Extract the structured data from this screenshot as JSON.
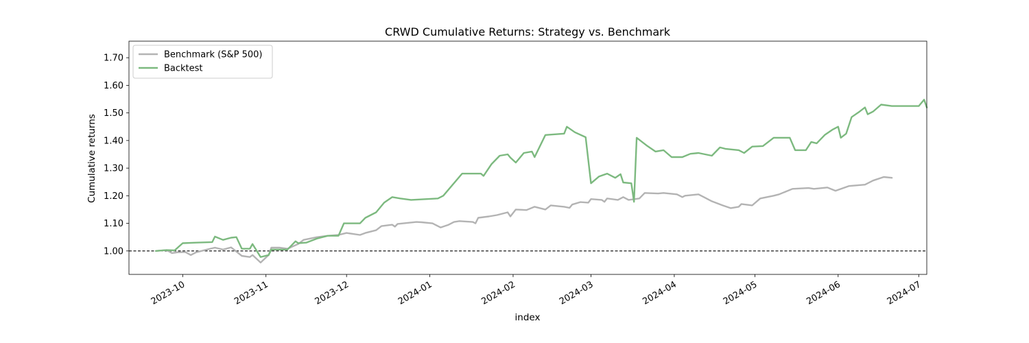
{
  "chart_data": {
    "type": "line",
    "title": "CRWD Cumulative Returns: Strategy vs. Benchmark",
    "xlabel": "index",
    "ylabel": "Cumulative returns",
    "x_range": [
      "2023-09-11",
      "2024-07-04"
    ],
    "ylim": [
      0.915,
      1.76
    ],
    "y_ticks": [
      1.0,
      1.1,
      1.2,
      1.3,
      1.4,
      1.5,
      1.6,
      1.7
    ],
    "y_tick_labels": [
      "1.00",
      "1.10",
      "1.20",
      "1.30",
      "1.40",
      "1.50",
      "1.60",
      "1.70"
    ],
    "x_ticks": [
      "2023-10-01",
      "2023-11-01",
      "2023-12-01",
      "2024-01-01",
      "2024-02-01",
      "2024-03-01",
      "2024-04-01",
      "2024-05-01",
      "2024-06-01",
      "2024-07-01"
    ],
    "x_tick_labels": [
      "2023-10",
      "2023-11",
      "2023-12",
      "2024-01",
      "2024-02",
      "2024-03",
      "2024-04",
      "2024-05",
      "2024-06",
      "2024-07"
    ],
    "reference_line": {
      "y": 1.0,
      "style": "dashed",
      "color": "#000000"
    },
    "grid": false,
    "legend_position": "top-left",
    "series": [
      {
        "name": "Benchmark (S&P 500)",
        "color": "#b3b3b3",
        "points": [
          [
            "2023-09-21",
            1.0
          ],
          [
            "2023-09-25",
            1.003
          ],
          [
            "2023-09-27",
            0.992
          ],
          [
            "2023-09-29",
            0.995
          ],
          [
            "2023-10-02",
            0.996
          ],
          [
            "2023-10-04",
            0.985
          ],
          [
            "2023-10-06",
            0.995
          ],
          [
            "2023-10-10",
            1.005
          ],
          [
            "2023-10-13",
            1.012
          ],
          [
            "2023-10-16",
            1.005
          ],
          [
            "2023-10-19",
            1.013
          ],
          [
            "2023-10-23",
            0.982
          ],
          [
            "2023-10-26",
            0.978
          ],
          [
            "2023-10-27",
            0.985
          ],
          [
            "2023-10-30",
            0.958
          ],
          [
            "2023-11-02",
            0.985
          ],
          [
            "2023-11-03",
            1.012
          ],
          [
            "2023-11-06",
            1.012
          ],
          [
            "2023-11-09",
            1.008
          ],
          [
            "2023-11-13",
            1.025
          ],
          [
            "2023-11-15",
            1.04
          ],
          [
            "2023-11-20",
            1.05
          ],
          [
            "2023-11-24",
            1.055
          ],
          [
            "2023-11-28",
            1.058
          ],
          [
            "2023-12-01",
            1.065
          ],
          [
            "2023-12-06",
            1.058
          ],
          [
            "2023-12-08",
            1.065
          ],
          [
            "2023-12-12",
            1.075
          ],
          [
            "2023-12-14",
            1.09
          ],
          [
            "2023-12-18",
            1.095
          ],
          [
            "2023-12-19",
            1.088
          ],
          [
            "2023-12-20",
            1.098
          ],
          [
            "2023-12-27",
            1.105
          ],
          [
            "2023-12-29",
            1.104
          ],
          [
            "2024-01-02",
            1.1
          ],
          [
            "2024-01-04",
            1.09
          ],
          [
            "2024-01-05",
            1.085
          ],
          [
            "2024-01-08",
            1.095
          ],
          [
            "2024-01-10",
            1.105
          ],
          [
            "2024-01-12",
            1.108
          ],
          [
            "2024-01-17",
            1.105
          ],
          [
            "2024-01-18",
            1.1
          ],
          [
            "2024-01-19",
            1.12
          ],
          [
            "2024-01-23",
            1.125
          ],
          [
            "2024-01-26",
            1.13
          ],
          [
            "2024-01-30",
            1.14
          ],
          [
            "2024-01-31",
            1.125
          ],
          [
            "2024-02-02",
            1.15
          ],
          [
            "2024-02-06",
            1.148
          ],
          [
            "2024-02-09",
            1.16
          ],
          [
            "2024-02-13",
            1.15
          ],
          [
            "2024-02-15",
            1.165
          ],
          [
            "2024-02-20",
            1.16
          ],
          [
            "2024-02-22",
            1.156
          ],
          [
            "2024-02-23",
            1.168
          ],
          [
            "2024-02-26",
            1.177
          ],
          [
            "2024-02-29",
            1.175
          ],
          [
            "2024-03-01",
            1.188
          ],
          [
            "2024-03-05",
            1.185
          ],
          [
            "2024-03-06",
            1.178
          ],
          [
            "2024-03-07",
            1.19
          ],
          [
            "2024-03-11",
            1.185
          ],
          [
            "2024-03-13",
            1.195
          ],
          [
            "2024-03-15",
            1.185
          ],
          [
            "2024-03-19",
            1.19
          ],
          [
            "2024-03-21",
            1.21
          ],
          [
            "2024-03-26",
            1.208
          ],
          [
            "2024-03-28",
            1.21
          ],
          [
            "2024-04-02",
            1.205
          ],
          [
            "2024-04-04",
            1.195
          ],
          [
            "2024-04-05",
            1.2
          ],
          [
            "2024-04-10",
            1.205
          ],
          [
            "2024-04-12",
            1.195
          ],
          [
            "2024-04-15",
            1.18
          ],
          [
            "2024-04-19",
            1.165
          ],
          [
            "2024-04-22",
            1.155
          ],
          [
            "2024-04-25",
            1.16
          ],
          [
            "2024-04-26",
            1.17
          ],
          [
            "2024-04-30",
            1.165
          ],
          [
            "2024-05-03",
            1.19
          ],
          [
            "2024-05-08",
            1.2
          ],
          [
            "2024-05-10",
            1.205
          ],
          [
            "2024-05-15",
            1.225
          ],
          [
            "2024-05-21",
            1.228
          ],
          [
            "2024-05-23",
            1.225
          ],
          [
            "2024-05-28",
            1.23
          ],
          [
            "2024-05-31",
            1.218
          ],
          [
            "2024-06-05",
            1.235
          ],
          [
            "2024-06-11",
            1.24
          ],
          [
            "2024-06-14",
            1.255
          ],
          [
            "2024-06-18",
            1.268
          ],
          [
            "2024-06-21",
            1.265
          ]
        ]
      },
      {
        "name": "Backtest",
        "color": "#7cb97f",
        "points": [
          [
            "2023-09-21",
            1.0
          ],
          [
            "2023-09-25",
            1.003
          ],
          [
            "2023-09-28",
            1.002
          ],
          [
            "2023-10-01",
            1.028
          ],
          [
            "2023-10-06",
            1.03
          ],
          [
            "2023-10-12",
            1.032
          ],
          [
            "2023-10-13",
            1.052
          ],
          [
            "2023-10-16",
            1.04
          ],
          [
            "2023-10-19",
            1.048
          ],
          [
            "2023-10-21",
            1.05
          ],
          [
            "2023-10-23",
            1.008
          ],
          [
            "2023-10-26",
            1.008
          ],
          [
            "2023-10-27",
            1.025
          ],
          [
            "2023-10-30",
            0.978
          ],
          [
            "2023-11-02",
            0.985
          ],
          [
            "2023-11-03",
            1.005
          ],
          [
            "2023-11-06",
            1.005
          ],
          [
            "2023-11-09",
            1.005
          ],
          [
            "2023-11-12",
            1.035
          ],
          [
            "2023-11-13",
            1.028
          ],
          [
            "2023-11-16",
            1.03
          ],
          [
            "2023-11-20",
            1.045
          ],
          [
            "2023-11-24",
            1.055
          ],
          [
            "2023-11-28",
            1.055
          ],
          [
            "2023-11-30",
            1.1
          ],
          [
            "2023-12-06",
            1.1
          ],
          [
            "2023-12-08",
            1.12
          ],
          [
            "2023-12-12",
            1.14
          ],
          [
            "2023-12-15",
            1.175
          ],
          [
            "2023-12-18",
            1.195
          ],
          [
            "2023-12-21",
            1.19
          ],
          [
            "2023-12-25",
            1.185
          ],
          [
            "2024-01-04",
            1.19
          ],
          [
            "2024-01-06",
            1.2
          ],
          [
            "2024-01-13",
            1.28
          ],
          [
            "2024-01-20",
            1.28
          ],
          [
            "2024-01-21",
            1.272
          ],
          [
            "2024-01-24",
            1.315
          ],
          [
            "2024-01-27",
            1.345
          ],
          [
            "2024-01-30",
            1.35
          ],
          [
            "2024-01-31",
            1.338
          ],
          [
            "2024-02-02",
            1.32
          ],
          [
            "2024-02-05",
            1.355
          ],
          [
            "2024-02-08",
            1.36
          ],
          [
            "2024-02-09",
            1.34
          ],
          [
            "2024-02-13",
            1.42
          ],
          [
            "2024-02-20",
            1.425
          ],
          [
            "2024-02-21",
            1.45
          ],
          [
            "2024-02-24",
            1.43
          ],
          [
            "2024-02-28",
            1.412
          ],
          [
            "2024-03-01",
            1.245
          ],
          [
            "2024-03-04",
            1.27
          ],
          [
            "2024-03-07",
            1.28
          ],
          [
            "2024-03-10",
            1.265
          ],
          [
            "2024-03-12",
            1.278
          ],
          [
            "2024-03-13",
            1.248
          ],
          [
            "2024-03-16",
            1.245
          ],
          [
            "2024-03-17",
            1.178
          ],
          [
            "2024-03-18",
            1.41
          ],
          [
            "2024-03-22",
            1.38
          ],
          [
            "2024-03-25",
            1.36
          ],
          [
            "2024-03-28",
            1.365
          ],
          [
            "2024-03-31",
            1.34
          ],
          [
            "2024-04-04",
            1.34
          ],
          [
            "2024-04-07",
            1.352
          ],
          [
            "2024-04-10",
            1.355
          ],
          [
            "2024-04-15",
            1.345
          ],
          [
            "2024-04-18",
            1.375
          ],
          [
            "2024-04-20",
            1.37
          ],
          [
            "2024-04-25",
            1.365
          ],
          [
            "2024-04-27",
            1.355
          ],
          [
            "2024-04-30",
            1.378
          ],
          [
            "2024-05-04",
            1.38
          ],
          [
            "2024-05-08",
            1.41
          ],
          [
            "2024-05-14",
            1.41
          ],
          [
            "2024-05-16",
            1.365
          ],
          [
            "2024-05-20",
            1.365
          ],
          [
            "2024-05-22",
            1.395
          ],
          [
            "2024-05-24",
            1.39
          ],
          [
            "2024-05-27",
            1.42
          ],
          [
            "2024-05-30",
            1.44
          ],
          [
            "2024-06-01",
            1.45
          ],
          [
            "2024-06-02",
            1.41
          ],
          [
            "2024-06-04",
            1.425
          ],
          [
            "2024-06-06",
            1.485
          ],
          [
            "2024-06-09",
            1.505
          ],
          [
            "2024-06-11",
            1.52
          ],
          [
            "2024-06-12",
            1.495
          ],
          [
            "2024-06-14",
            1.505
          ],
          [
            "2024-06-17",
            1.53
          ],
          [
            "2024-06-21",
            1.525
          ],
          [
            "2024-06-27",
            1.525
          ],
          [
            "2024-07-01",
            1.525
          ],
          [
            "2024-07-03",
            1.548
          ],
          [
            "2024-07-04",
            1.52
          ]
        ]
      }
    ]
  }
}
